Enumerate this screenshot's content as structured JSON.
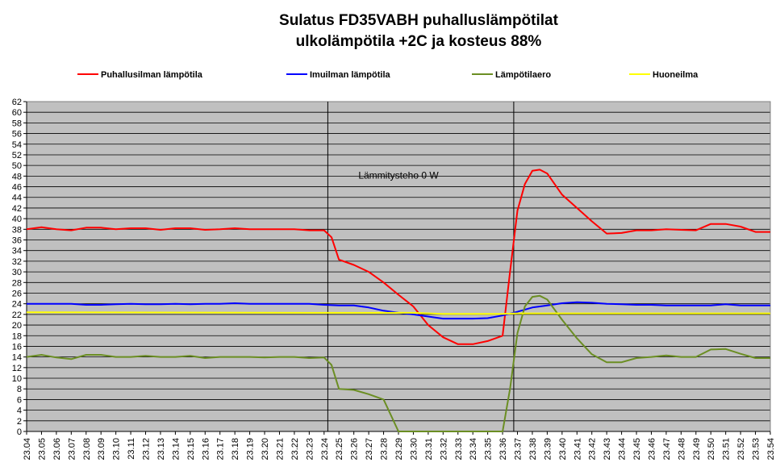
{
  "chart_data": {
    "type": "line",
    "title": "Sulatus FD35VABH  puhalluslämpötilat",
    "subtitle": "ulkolämpötila +2C ja kosteus 88%",
    "xlabel": "",
    "ylabel": "",
    "ylim": [
      0,
      62
    ],
    "ytick_step": 2,
    "grid": true,
    "legend_position": "top",
    "plot_background": "#c0c0c0",
    "categories": [
      "23.04",
      "23.05",
      "23.06",
      "23.07",
      "23.08",
      "23.09",
      "23.10",
      "23.11",
      "23.12",
      "23.13",
      "23.14",
      "23.15",
      "23.16",
      "23.17",
      "23.18",
      "23.19",
      "23.20",
      "23.21",
      "23.22",
      "23.23",
      "23.24",
      "23.25",
      "23.26",
      "23.27",
      "23.28",
      "23.29",
      "23.30",
      "23.31",
      "23.32",
      "23.33",
      "23.34",
      "23.35",
      "23.36",
      "23.37",
      "23.38",
      "23.39",
      "23.40",
      "23.41",
      "23.42",
      "23.43",
      "23.44",
      "23.45",
      "23.46",
      "23.47",
      "23.48",
      "23.49",
      "23.50",
      "23.51",
      "23.52",
      "23.53",
      "23.54"
    ],
    "series": [
      {
        "name": "Puhallusilman lämpötila",
        "color": "#ff0000",
        "points": [
          [
            "23.04",
            38.0
          ],
          [
            "23.05",
            38.4
          ],
          [
            "23.06",
            38.0
          ],
          [
            "23.07",
            37.8
          ],
          [
            "23.08",
            38.3
          ],
          [
            "23.09",
            38.3
          ],
          [
            "23.10",
            38.0
          ],
          [
            "23.11",
            38.2
          ],
          [
            "23.12",
            38.2
          ],
          [
            "23.13",
            37.9
          ],
          [
            "23.14",
            38.2
          ],
          [
            "23.15",
            38.2
          ],
          [
            "23.16",
            37.9
          ],
          [
            "23.17",
            38.0
          ],
          [
            "23.18",
            38.2
          ],
          [
            "23.19",
            38.0
          ],
          [
            "23.20",
            38.0
          ],
          [
            "23.21",
            38.0
          ],
          [
            "23.22",
            38.0
          ],
          [
            "23.23",
            37.8
          ],
          [
            "23.24",
            37.8
          ],
          [
            "23.24.5",
            36.5
          ],
          [
            "23.25",
            32.3
          ],
          [
            "23.26",
            31.3
          ],
          [
            "23.27",
            30.0
          ],
          [
            "23.28",
            28.0
          ],
          [
            "23.29",
            25.7
          ],
          [
            "23.30",
            23.5
          ],
          [
            "23.31",
            20.0
          ],
          [
            "23.32",
            17.7
          ],
          [
            "23.33",
            16.4
          ],
          [
            "23.34",
            16.4
          ],
          [
            "23.35",
            17.0
          ],
          [
            "23.36",
            18.0
          ],
          [
            "23.36.5",
            30.0
          ],
          [
            "23.37",
            41.5
          ],
          [
            "23.37.5",
            46.5
          ],
          [
            "23.38",
            49.0
          ],
          [
            "23.38.5",
            49.2
          ],
          [
            "23.39",
            48.5
          ],
          [
            "23.40",
            44.5
          ],
          [
            "23.41",
            42.0
          ],
          [
            "23.42",
            39.5
          ],
          [
            "23.43",
            37.2
          ],
          [
            "23.44",
            37.3
          ],
          [
            "23.45",
            37.8
          ],
          [
            "23.46",
            37.8
          ],
          [
            "23.47",
            38.0
          ],
          [
            "23.48",
            37.9
          ],
          [
            "23.49",
            37.8
          ],
          [
            "23.50",
            39.0
          ],
          [
            "23.51",
            39.0
          ],
          [
            "23.52",
            38.5
          ],
          [
            "23.53",
            37.5
          ],
          [
            "23.54",
            37.5
          ]
        ]
      },
      {
        "name": "Imuilman lämpötila",
        "color": "#0000ff",
        "points": [
          [
            "23.04",
            24.0
          ],
          [
            "23.05",
            24.0
          ],
          [
            "23.06",
            24.0
          ],
          [
            "23.07",
            24.0
          ],
          [
            "23.08",
            23.8
          ],
          [
            "23.09",
            23.8
          ],
          [
            "23.10",
            23.9
          ],
          [
            "23.11",
            24.0
          ],
          [
            "23.12",
            23.9
          ],
          [
            "23.13",
            23.9
          ],
          [
            "23.14",
            24.0
          ],
          [
            "23.15",
            23.9
          ],
          [
            "23.16",
            24.0
          ],
          [
            "23.17",
            24.0
          ],
          [
            "23.18",
            24.1
          ],
          [
            "23.19",
            24.0
          ],
          [
            "23.20",
            24.0
          ],
          [
            "23.21",
            24.0
          ],
          [
            "23.22",
            24.0
          ],
          [
            "23.23",
            24.0
          ],
          [
            "23.24",
            23.8
          ],
          [
            "23.25",
            23.7
          ],
          [
            "23.26",
            23.7
          ],
          [
            "23.27",
            23.3
          ],
          [
            "23.28",
            22.7
          ],
          [
            "23.29",
            22.3
          ],
          [
            "23.30",
            22.0
          ],
          [
            "23.31",
            21.6
          ],
          [
            "23.32",
            21.2
          ],
          [
            "23.33",
            21.2
          ],
          [
            "23.34",
            21.2
          ],
          [
            "23.35",
            21.3
          ],
          [
            "23.36",
            21.8
          ],
          [
            "23.37",
            22.5
          ],
          [
            "23.38",
            23.3
          ],
          [
            "23.39",
            23.7
          ],
          [
            "23.40",
            24.1
          ],
          [
            "23.41",
            24.3
          ],
          [
            "23.42",
            24.2
          ],
          [
            "23.43",
            24.0
          ],
          [
            "23.44",
            23.9
          ],
          [
            "23.45",
            23.8
          ],
          [
            "23.46",
            23.8
          ],
          [
            "23.47",
            23.7
          ],
          [
            "23.48",
            23.7
          ],
          [
            "23.49",
            23.7
          ],
          [
            "23.50",
            23.7
          ],
          [
            "23.51",
            23.9
          ],
          [
            "23.52",
            23.7
          ],
          [
            "23.53",
            23.7
          ],
          [
            "23.54",
            23.7
          ]
        ]
      },
      {
        "name": "Lämpötilaero",
        "color": "#6b8e23",
        "points": [
          [
            "23.04",
            14.0
          ],
          [
            "23.05",
            14.4
          ],
          [
            "23.06",
            13.9
          ],
          [
            "23.07",
            13.6
          ],
          [
            "23.08",
            14.4
          ],
          [
            "23.09",
            14.4
          ],
          [
            "23.10",
            14.0
          ],
          [
            "23.11",
            14.0
          ],
          [
            "23.12",
            14.2
          ],
          [
            "23.13",
            14.0
          ],
          [
            "23.14",
            14.0
          ],
          [
            "23.15",
            14.2
          ],
          [
            "23.16",
            13.8
          ],
          [
            "23.17",
            14.0
          ],
          [
            "23.18",
            14.0
          ],
          [
            "23.19",
            14.0
          ],
          [
            "23.20",
            13.9
          ],
          [
            "23.21",
            14.0
          ],
          [
            "23.22",
            14.0
          ],
          [
            "23.23",
            13.8
          ],
          [
            "23.24",
            13.9
          ],
          [
            "23.24.5",
            12.5
          ],
          [
            "23.25",
            8.0
          ],
          [
            "23.26",
            7.8
          ],
          [
            "23.27",
            7.0
          ],
          [
            "23.28",
            6.0
          ],
          [
            "23.29",
            0.0
          ],
          [
            "23.30",
            0.0
          ],
          [
            "23.31",
            0.0
          ],
          [
            "23.32",
            0.0
          ],
          [
            "23.33",
            0.0
          ],
          [
            "23.34",
            0.0
          ],
          [
            "23.35",
            0.0
          ],
          [
            "23.36",
            0.0
          ],
          [
            "23.36.5",
            8.0
          ],
          [
            "23.37",
            18.5
          ],
          [
            "23.37.5",
            23.5
          ],
          [
            "23.38",
            25.3
          ],
          [
            "23.38.5",
            25.5
          ],
          [
            "23.39",
            24.8
          ],
          [
            "23.40",
            21.0
          ],
          [
            "23.41",
            17.5
          ],
          [
            "23.42",
            14.5
          ],
          [
            "23.43",
            13.0
          ],
          [
            "23.44",
            13.0
          ],
          [
            "23.45",
            13.8
          ],
          [
            "23.46",
            14.0
          ],
          [
            "23.47",
            14.3
          ],
          [
            "23.48",
            14.0
          ],
          [
            "23.49",
            14.0
          ],
          [
            "23.50",
            15.4
          ],
          [
            "23.51",
            15.5
          ],
          [
            "23.52",
            14.6
          ],
          [
            "23.53",
            13.8
          ],
          [
            "23.54",
            13.8
          ]
        ]
      },
      {
        "name": "Huoneilma",
        "color": "#ffff00",
        "points": [
          [
            "23.04",
            22.4
          ],
          [
            "23.24",
            22.3
          ],
          [
            "23.30",
            22.3
          ],
          [
            "23.32",
            22.1
          ],
          [
            "23.36",
            22.1
          ],
          [
            "23.37",
            22.2
          ],
          [
            "23.54",
            22.2
          ]
        ]
      }
    ],
    "vertical_markers": [
      {
        "x": "23.24",
        "x_offset": 0.25
      },
      {
        "x": "23.37",
        "x_offset": -0.25
      }
    ],
    "annotations": [
      {
        "text": "Lämmitysteho 0 W",
        "x": "23.29",
        "y": 47.5
      }
    ]
  }
}
